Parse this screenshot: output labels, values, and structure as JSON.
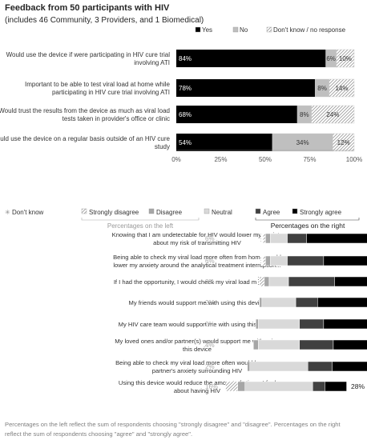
{
  "title": "Feedback from 50 participants with HIV",
  "subtitle": "(includes 46 Community, 3 Providers, and 1 Biomedical)",
  "footnote": [
    "Percentages on the left reflect the sum of respondents choosing \"strongly disagree\" and \"disagree\". Percentages on the right",
    "reflect the sum of respondents choosing \"agree\" and \"strongly agree\"."
  ],
  "colors": {
    "yes": "#000000",
    "no": "#bfbfbf",
    "dont_know": "#e6e6e6",
    "strongly_disagree": "#f2f2f2",
    "disagree": "#a6a6a6",
    "neutral": "#d9d9d9",
    "agree": "#404040",
    "strongly_agree": "#000000"
  },
  "chart_data": [
    {
      "type": "bar",
      "stacked": true,
      "orientation": "horizontal",
      "legend": [
        "Yes",
        "No",
        "Don't know / no response"
      ],
      "legend_placement": "top",
      "x_ticks": [
        "0%",
        "25%",
        "50%",
        "75%",
        "100%"
      ],
      "xlim": [
        0,
        100
      ],
      "categories": [
        [
          "Would use the device if were participating in HIV cure trial",
          "involving ATI"
        ],
        [
          "Important to be able to test viral load at home while",
          "participating in HIV cure trial involving ATI"
        ],
        [
          "Would trust the results from the device as much as viral load",
          "tests taken in provider's office or clinic"
        ],
        [
          "Would use the device on a regular basis outside of an HIV cure",
          "study"
        ]
      ],
      "series": [
        {
          "name": "Yes",
          "values": [
            84,
            78,
            68,
            54
          ]
        },
        {
          "name": "No",
          "values": [
            6,
            8,
            8,
            34
          ]
        },
        {
          "name": "Don't know / no response",
          "values": [
            10,
            14,
            24,
            12
          ]
        }
      ]
    },
    {
      "type": "bar",
      "stacked": true,
      "diverging": true,
      "orientation": "horizontal",
      "legend": [
        "Don't know",
        "Strongly disagree",
        "Disagree",
        "Neutral",
        "Agree",
        "Strongly agree"
      ],
      "legend_placement": "top",
      "left_label": "Percentages on the left",
      "right_label": "Percentages on the right",
      "categories": [
        [
          "Knowing that I am undetectable for HIV would lower my anxiety",
          "about my risk of transmitting HIV"
        ],
        [
          "Being able to check my viral load more often from home would",
          "lower my anxiety around the analytical treatment interruption..."
        ],
        [
          "If I had the opportunity, I would check my viral load more often"
        ],
        [
          "My friends would support me with using this device"
        ],
        [
          "My HIV care team would support me with using this device"
        ],
        [
          "My loved ones and/or partner(s) would support me with using",
          "this device"
        ],
        [
          "Being able to check my viral load more often would lower my",
          "partner's anxiety surrounding HIV"
        ],
        [
          "Using this device would reduce the amount of stigma I feel",
          "about having HIV"
        ]
      ],
      "left_percentages": [
        "6%",
        "6%",
        "8%",
        "2%",
        "2%",
        "4%",
        "2%",
        "16%"
      ],
      "right_percentages": [
        "78%",
        "78%",
        "74%",
        "70%",
        "64%",
        "62%",
        "50%",
        "28%"
      ],
      "series": [
        {
          "name": "Don't know",
          "values": [
            2,
            2,
            2,
            0,
            0,
            0,
            0,
            0
          ]
        },
        {
          "name": "Strongly disagree",
          "values": [
            2,
            2,
            4,
            0,
            0,
            0,
            0,
            10
          ]
        },
        {
          "name": "Disagree",
          "values": [
            4,
            4,
            4,
            2,
            2,
            4,
            2,
            6
          ]
        },
        {
          "name": "Neutral",
          "values": [
            14,
            14,
            16,
            28,
            34,
            34,
            48,
            56
          ]
        },
        {
          "name": "Agree",
          "values": [
            16,
            30,
            38,
            18,
            20,
            28,
            20,
            10
          ]
        },
        {
          "name": "Strongly agree",
          "values": [
            62,
            48,
            36,
            52,
            44,
            34,
            30,
            18
          ]
        }
      ]
    }
  ]
}
